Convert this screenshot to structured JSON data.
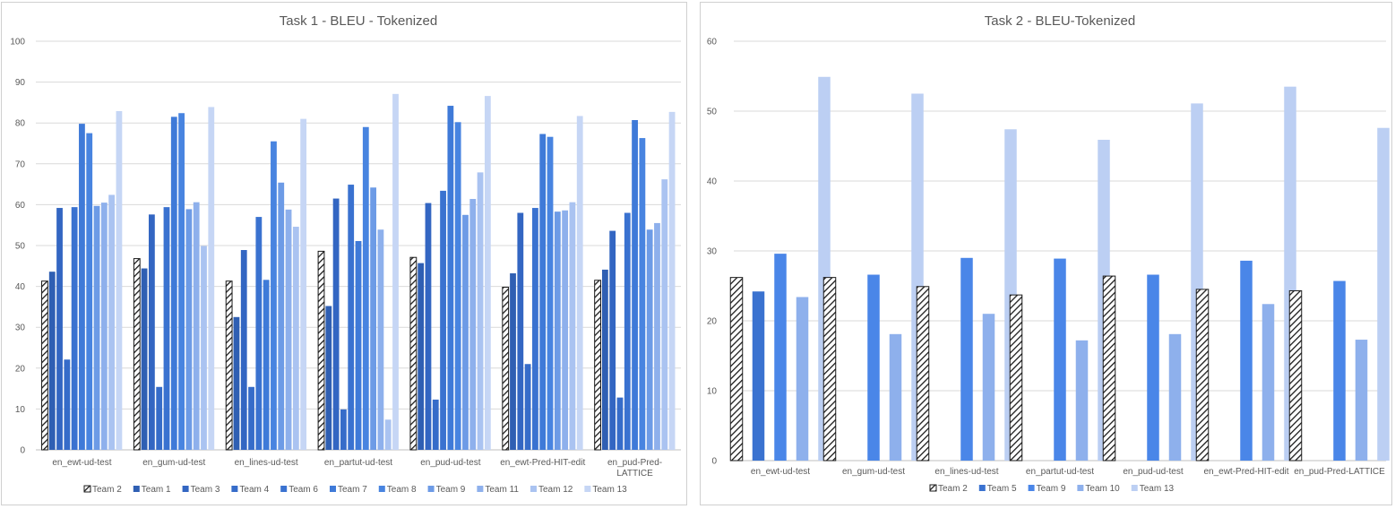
{
  "chart_data": [
    {
      "type": "bar",
      "title": "Task 1 - BLEU - Tokenized",
      "xlabel": "",
      "ylabel": "",
      "ylim": [
        0,
        100
      ],
      "yticks": [
        0,
        10,
        20,
        30,
        40,
        50,
        60,
        70,
        80,
        90,
        100
      ],
      "categories": [
        [
          "en_ewt-ud-test"
        ],
        [
          "en_gum-ud-test"
        ],
        [
          "en_lines-ud-test"
        ],
        [
          "en_partut-ud-test"
        ],
        [
          "en_pud-ud-test"
        ],
        [
          "en_ewt-Pred-HIT-edit"
        ],
        [
          "en_pud-Pred-",
          "LATTICE"
        ]
      ],
      "series": [
        {
          "name": "Team 2",
          "color": "#ffffff",
          "hatched": true,
          "values": [
            41.3,
            46.8,
            41.3,
            48.6,
            47.1,
            39.8,
            41.5
          ]
        },
        {
          "name": "Team 1",
          "color": "#2f5fb3",
          "values": [
            43.6,
            44.4,
            32.5,
            35.2,
            45.7,
            43.2,
            44.1
          ]
        },
        {
          "name": "Team 3",
          "color": "#3366c2",
          "values": [
            59.2,
            57.6,
            48.9,
            61.5,
            60.4,
            58.0,
            53.6
          ]
        },
        {
          "name": "Team 4",
          "color": "#366cc9",
          "values": [
            22.1,
            15.4,
            15.4,
            9.9,
            12.3,
            21.0,
            12.8
          ]
        },
        {
          "name": "Team 6",
          "color": "#3a72d0",
          "values": [
            59.4,
            59.4,
            57.0,
            64.9,
            63.4,
            59.2,
            58.0
          ]
        },
        {
          "name": "Team 7",
          "color": "#3f7ad8",
          "values": [
            79.8,
            81.5,
            41.6,
            51.1,
            84.2,
            77.3,
            80.7
          ]
        },
        {
          "name": "Team 8",
          "color": "#4884e0",
          "values": [
            77.5,
            82.4,
            75.5,
            79.0,
            80.2,
            76.6,
            76.3
          ]
        },
        {
          "name": "Team 9",
          "color": "#6d9be6",
          "values": [
            59.7,
            58.9,
            65.4,
            64.2,
            57.5,
            58.3,
            53.9
          ]
        },
        {
          "name": "Team 11",
          "color": "#8eb0ec",
          "values": [
            60.5,
            60.6,
            58.8,
            53.9,
            61.4,
            58.6,
            55.5
          ]
        },
        {
          "name": "Team 12",
          "color": "#aac3f1",
          "values": [
            62.4,
            49.9,
            54.6,
            7.4,
            67.9,
            60.6,
            66.2
          ]
        },
        {
          "name": "Team 13",
          "color": "#c6d6f5",
          "values": [
            82.9,
            83.9,
            81.0,
            87.1,
            86.6,
            81.7,
            82.7
          ]
        }
      ]
    },
    {
      "type": "bar",
      "title": "Task 2 - BLEU-Tokenized",
      "xlabel": "",
      "ylabel": "",
      "ylim": [
        0,
        60
      ],
      "yticks": [
        0,
        10,
        20,
        30,
        40,
        50,
        60
      ],
      "categories": [
        [
          "en_ewt-ud-test"
        ],
        [
          "en_gum-ud-test"
        ],
        [
          "en_lines-ud-test"
        ],
        [
          "en_partut-ud-test"
        ],
        [
          "en_pud-ud-test"
        ],
        [
          "en_ewt-Pred-HIT-edit"
        ],
        [
          "en_pud-Pred-LATTICE"
        ]
      ],
      "series": [
        {
          "name": "Team 2",
          "color": "#ffffff",
          "hatched": true,
          "values": [
            26.2,
            26.2,
            24.9,
            23.7,
            26.4,
            24.5,
            24.3
          ]
        },
        {
          "name": "Team 5",
          "color": "#3a72d0",
          "values": [
            24.2,
            null,
            null,
            null,
            null,
            null,
            null
          ]
        },
        {
          "name": "Team 9",
          "color": "#4a86e8",
          "values": [
            29.6,
            26.6,
            29.0,
            28.9,
            26.6,
            28.6,
            25.7
          ]
        },
        {
          "name": "Team 10",
          "color": "#8eb0ec",
          "values": [
            23.4,
            18.1,
            21.0,
            17.2,
            18.1,
            22.4,
            17.3
          ]
        },
        {
          "name": "Team 13",
          "color": "#bccff3",
          "values": [
            54.9,
            52.5,
            47.4,
            45.9,
            51.1,
            53.5,
            47.6
          ]
        }
      ]
    }
  ]
}
